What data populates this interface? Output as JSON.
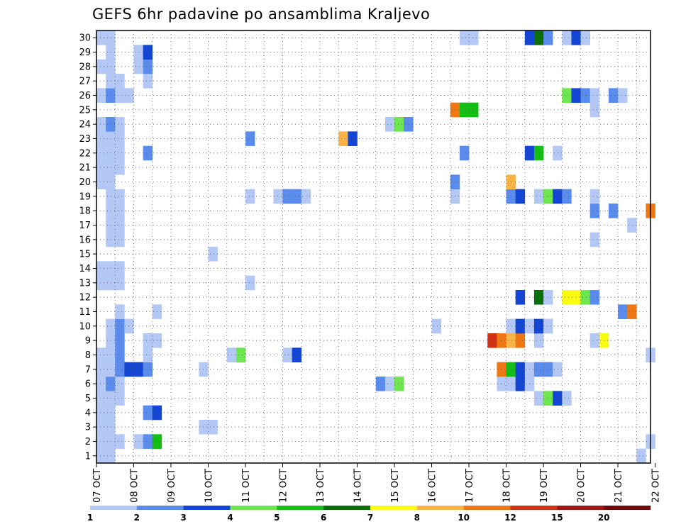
{
  "chart_data": {
    "type": "heatmap",
    "title": "GEFS 6hr padavine po ansamblima Kraljevo",
    "xlabel": "",
    "ylabel": "",
    "x_ticks": [
      "07 OCT",
      "08 OCT",
      "09 OCT",
      "10 OCT",
      "11 OCT",
      "12 OCT",
      "13 OCT",
      "14 OCT",
      "15 OCT",
      "16 OCT",
      "17 OCT",
      "18 OCT",
      "19 OCT",
      "20 OCT",
      "21 OCT",
      "22 OCT"
    ],
    "y_members": [
      1,
      2,
      3,
      4,
      5,
      6,
      7,
      8,
      9,
      10,
      11,
      12,
      13,
      14,
      15,
      16,
      17,
      18,
      19,
      20,
      21,
      22,
      23,
      24,
      25,
      26,
      27,
      28,
      29,
      30
    ],
    "time_steps": 60,
    "step_hours": 6,
    "grid": true,
    "legend": {
      "position": "bottom",
      "labels": [
        "1",
        "2",
        "3",
        "4",
        "5",
        "6",
        "7",
        "8",
        "10",
        "12",
        "15",
        "20"
      ],
      "colors": [
        "#b4c8f5",
        "#5a8cee",
        "#1446d6",
        "#6ee650",
        "#14be14",
        "#0a6e0a",
        "#fafa14",
        "#fab446",
        "#f07814",
        "#d23214",
        "#a01414",
        "#6e0a0a"
      ]
    },
    "cells_note": "each cell = [ensemble member, time step index (0 = 07 OCT 00z, 6h each), color class 1..12]",
    "cells": [
      [
        1,
        0,
        1
      ],
      [
        1,
        1,
        1
      ],
      [
        1,
        2,
        1
      ],
      [
        1,
        4,
        1
      ],
      [
        1,
        5,
        2
      ],
      [
        1,
        6,
        5
      ],
      [
        1,
        59,
        1
      ],
      [
        0,
        0,
        1
      ],
      [
        0,
        1,
        1
      ],
      [
        0,
        58,
        1
      ],
      [
        2,
        0,
        1
      ],
      [
        2,
        1,
        1
      ],
      [
        2,
        11,
        1
      ],
      [
        2,
        12,
        1
      ],
      [
        3,
        0,
        1
      ],
      [
        3,
        1,
        1
      ],
      [
        3,
        5,
        2
      ],
      [
        3,
        6,
        3
      ],
      [
        4,
        0,
        1
      ],
      [
        4,
        1,
        1
      ],
      [
        4,
        2,
        1
      ],
      [
        4,
        47,
        1
      ],
      [
        4,
        48,
        4
      ],
      [
        4,
        49,
        3
      ],
      [
        4,
        50,
        1
      ],
      [
        5,
        0,
        1
      ],
      [
        5,
        1,
        2
      ],
      [
        5,
        2,
        1
      ],
      [
        5,
        30,
        2
      ],
      [
        5,
        31,
        1
      ],
      [
        5,
        32,
        4
      ],
      [
        5,
        43,
        1
      ],
      [
        5,
        44,
        1
      ],
      [
        5,
        45,
        3
      ],
      [
        5,
        46,
        1
      ],
      [
        6,
        0,
        1
      ],
      [
        6,
        1,
        1
      ],
      [
        6,
        2,
        2
      ],
      [
        6,
        3,
        3
      ],
      [
        6,
        4,
        3
      ],
      [
        6,
        5,
        2
      ],
      [
        6,
        11,
        1
      ],
      [
        6,
        43,
        9
      ],
      [
        6,
        44,
        5
      ],
      [
        6,
        45,
        3
      ],
      [
        6,
        46,
        1
      ],
      [
        6,
        47,
        2
      ],
      [
        6,
        48,
        2
      ],
      [
        6,
        49,
        1
      ],
      [
        7,
        0,
        1
      ],
      [
        7,
        1,
        1
      ],
      [
        7,
        2,
        2
      ],
      [
        7,
        5,
        1
      ],
      [
        7,
        14,
        1
      ],
      [
        7,
        15,
        4
      ],
      [
        7,
        20,
        1
      ],
      [
        7,
        21,
        3
      ],
      [
        7,
        59,
        1
      ],
      [
        8,
        1,
        1
      ],
      [
        8,
        2,
        2
      ],
      [
        8,
        5,
        1
      ],
      [
        8,
        6,
        1
      ],
      [
        8,
        42,
        10
      ],
      [
        8,
        43,
        9
      ],
      [
        8,
        44,
        8
      ],
      [
        8,
        45,
        9
      ],
      [
        8,
        47,
        1
      ],
      [
        8,
        53,
        1
      ],
      [
        8,
        54,
        7
      ],
      [
        9,
        1,
        1
      ],
      [
        9,
        2,
        2
      ],
      [
        9,
        3,
        1
      ],
      [
        9,
        36,
        1
      ],
      [
        9,
        44,
        1
      ],
      [
        9,
        45,
        3
      ],
      [
        9,
        46,
        1
      ],
      [
        9,
        47,
        3
      ],
      [
        9,
        48,
        1
      ],
      [
        10,
        2,
        1
      ],
      [
        10,
        6,
        1
      ],
      [
        10,
        56,
        2
      ],
      [
        10,
        57,
        9
      ],
      [
        11,
        45,
        3
      ],
      [
        11,
        47,
        6
      ],
      [
        11,
        48,
        1
      ],
      [
        11,
        50,
        7
      ],
      [
        11,
        51,
        7
      ],
      [
        11,
        52,
        4
      ],
      [
        11,
        53,
        2
      ],
      [
        12,
        0,
        1
      ],
      [
        12,
        1,
        1
      ],
      [
        12,
        2,
        1
      ],
      [
        12,
        16,
        1
      ],
      [
        13,
        0,
        1
      ],
      [
        13,
        1,
        1
      ],
      [
        13,
        2,
        1
      ],
      [
        14,
        12,
        1
      ],
      [
        15,
        1,
        1
      ],
      [
        15,
        2,
        1
      ],
      [
        15,
        53,
        1
      ],
      [
        16,
        1,
        1
      ],
      [
        16,
        2,
        1
      ],
      [
        16,
        57,
        1
      ],
      [
        17,
        1,
        1
      ],
      [
        17,
        2,
        1
      ],
      [
        17,
        53,
        2
      ],
      [
        17,
        55,
        2
      ],
      [
        17,
        59,
        9
      ],
      [
        18,
        1,
        1
      ],
      [
        18,
        2,
        1
      ],
      [
        18,
        16,
        1
      ],
      [
        18,
        19,
        1
      ],
      [
        18,
        20,
        2
      ],
      [
        18,
        21,
        2
      ],
      [
        18,
        22,
        1
      ],
      [
        18,
        38,
        1
      ],
      [
        18,
        44,
        2
      ],
      [
        18,
        45,
        3
      ],
      [
        18,
        47,
        1
      ],
      [
        18,
        48,
        4
      ],
      [
        18,
        49,
        3
      ],
      [
        18,
        50,
        2
      ],
      [
        18,
        53,
        1
      ],
      [
        19,
        0,
        1
      ],
      [
        19,
        1,
        1
      ],
      [
        19,
        38,
        2
      ],
      [
        19,
        44,
        8
      ],
      [
        20,
        0,
        1
      ],
      [
        20,
        1,
        1
      ],
      [
        20,
        2,
        1
      ],
      [
        21,
        0,
        1
      ],
      [
        21,
        1,
        1
      ],
      [
        21,
        2,
        1
      ],
      [
        21,
        5,
        2
      ],
      [
        21,
        39,
        2
      ],
      [
        21,
        46,
        3
      ],
      [
        21,
        47,
        5
      ],
      [
        21,
        49,
        1
      ],
      [
        22,
        0,
        1
      ],
      [
        22,
        1,
        1
      ],
      [
        22,
        2,
        1
      ],
      [
        22,
        16,
        2
      ],
      [
        22,
        26,
        8
      ],
      [
        22,
        27,
        3
      ],
      [
        23,
        0,
        1
      ],
      [
        23,
        1,
        2
      ],
      [
        23,
        2,
        1
      ],
      [
        23,
        31,
        1
      ],
      [
        23,
        32,
        4
      ],
      [
        23,
        33,
        2
      ],
      [
        24,
        38,
        9
      ],
      [
        24,
        39,
        5
      ],
      [
        24,
        40,
        5
      ],
      [
        24,
        53,
        1
      ],
      [
        25,
        0,
        1
      ],
      [
        25,
        1,
        2
      ],
      [
        25,
        2,
        1
      ],
      [
        25,
        3,
        1
      ],
      [
        25,
        50,
        4
      ],
      [
        25,
        51,
        3
      ],
      [
        25,
        52,
        2
      ],
      [
        25,
        53,
        1
      ],
      [
        25,
        55,
        2
      ],
      [
        25,
        56,
        1
      ],
      [
        26,
        1,
        1
      ],
      [
        26,
        2,
        1
      ],
      [
        26,
        5,
        1
      ],
      [
        27,
        0,
        1
      ],
      [
        27,
        1,
        1
      ],
      [
        27,
        4,
        1
      ],
      [
        27,
        5,
        2
      ],
      [
        28,
        1,
        1
      ],
      [
        28,
        4,
        1
      ],
      [
        28,
        5,
        3
      ],
      [
        29,
        0,
        1
      ],
      [
        29,
        1,
        1
      ],
      [
        29,
        39,
        1
      ],
      [
        29,
        40,
        1
      ],
      [
        29,
        46,
        3
      ],
      [
        29,
        47,
        6
      ],
      [
        29,
        48,
        2
      ],
      [
        29,
        50,
        1
      ],
      [
        29,
        51,
        3
      ],
      [
        29,
        52,
        1
      ]
    ]
  }
}
